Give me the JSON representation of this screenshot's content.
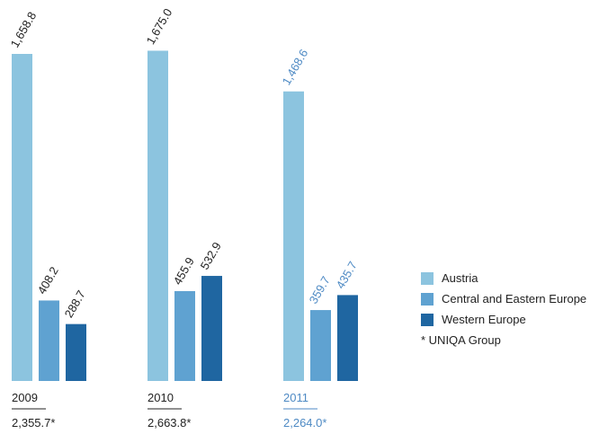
{
  "chart_data": {
    "type": "bar",
    "categories": [
      "2009",
      "2010",
      "2011"
    ],
    "series": [
      {
        "name": "Austria",
        "color": "#8cc4df",
        "values": [
          1658.8,
          1675.0,
          1468.6
        ],
        "labels": [
          "1,658.8",
          "1,675.0",
          "1,468.6"
        ]
      },
      {
        "name": "Central and Eastern Europe",
        "color": "#5fa2d1",
        "values": [
          408.2,
          455.9,
          359.7
        ],
        "labels": [
          "408.2",
          "455.9",
          "359.7"
        ]
      },
      {
        "name": "Western Europe",
        "color": "#1f66a1",
        "values": [
          288.7,
          532.9,
          435.7
        ],
        "labels": [
          "288.7",
          "532.9",
          "435.7"
        ]
      }
    ],
    "totals": [
      "2,355.7*",
      "2,663.8*",
      "2,264.0*"
    ],
    "highlight_color": "#4e8ac4",
    "text_color": "#222222",
    "highlight_category_index": 2,
    "footnote": "* UNIQA Group",
    "legend_position": "bottom-right"
  }
}
